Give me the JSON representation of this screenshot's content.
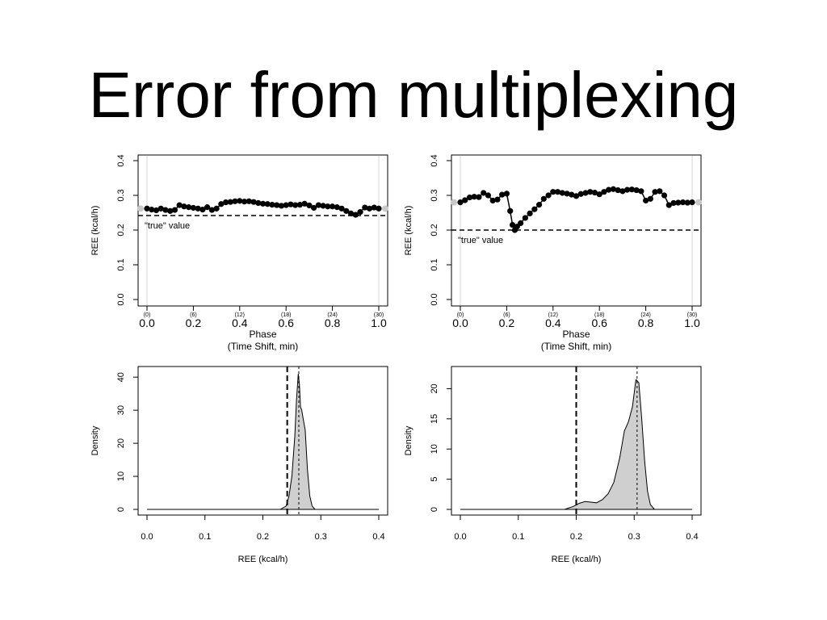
{
  "slide": {
    "title": "Error from multiplexing"
  },
  "chart_data": [
    {
      "id": "top-left",
      "type": "scatter",
      "xlabel": "Phase",
      "xlabel2": "(Time Shift, min)",
      "ylabel": "REE (kcal/h)",
      "xlim": [
        0,
        1
      ],
      "ylim": [
        0,
        0.4
      ],
      "xticks": [
        "0.0",
        "0.2",
        "0.4",
        "0.6",
        "0.8",
        "1.0"
      ],
      "xticks_minutes": [
        "(0)",
        "(6)",
        "(12)",
        "(18)",
        "(24)",
        "(30)"
      ],
      "yticks": [
        "0.0",
        "0.1",
        "0.2",
        "0.3",
        "0.4"
      ],
      "true_value": 0.242,
      "true_value_label": "\"true\" value",
      "series": [
        {
          "x": [
            0.0,
            0.02,
            0.04,
            0.06,
            0.08,
            0.1,
            0.12,
            0.14,
            0.16,
            0.18,
            0.2,
            0.22,
            0.24,
            0.26,
            0.28,
            0.3,
            0.32,
            0.34,
            0.36,
            0.38,
            0.4,
            0.42,
            0.44,
            0.46,
            0.48,
            0.5,
            0.52,
            0.54,
            0.56,
            0.58,
            0.6,
            0.62,
            0.64,
            0.66,
            0.68,
            0.7,
            0.72,
            0.74,
            0.76,
            0.78,
            0.8,
            0.82,
            0.84,
            0.86,
            0.88,
            0.9,
            0.92,
            0.94,
            0.96,
            0.98,
            1.0
          ],
          "y": [
            0.262,
            0.259,
            0.257,
            0.262,
            0.258,
            0.255,
            0.258,
            0.272,
            0.268,
            0.266,
            0.264,
            0.262,
            0.259,
            0.266,
            0.258,
            0.262,
            0.275,
            0.28,
            0.281,
            0.283,
            0.284,
            0.282,
            0.283,
            0.281,
            0.278,
            0.276,
            0.275,
            0.273,
            0.272,
            0.27,
            0.272,
            0.274,
            0.272,
            0.273,
            0.276,
            0.271,
            0.264,
            0.272,
            0.27,
            0.268,
            0.268,
            0.266,
            0.262,
            0.255,
            0.248,
            0.244,
            0.252,
            0.265,
            0.262,
            0.265,
            0.262
          ]
        }
      ]
    },
    {
      "id": "top-right",
      "type": "scatter",
      "xlabel": "Phase",
      "xlabel2": "(Time Shift, min)",
      "ylabel": "REE (kcal/h)",
      "xlim": [
        0,
        1
      ],
      "ylim": [
        0,
        0.4
      ],
      "xticks": [
        "0.0",
        "0.2",
        "0.4",
        "0.6",
        "0.8",
        "1.0"
      ],
      "xticks_minutes": [
        "(0)",
        "(6)",
        "(12)",
        "(18)",
        "(24)",
        "(30)"
      ],
      "yticks": [
        "0.0",
        "0.1",
        "0.2",
        "0.3",
        "0.4"
      ],
      "true_value": 0.2,
      "true_value_label": "\"true\" value",
      "series": [
        {
          "x": [
            0.0,
            0.02,
            0.04,
            0.06,
            0.08,
            0.1,
            0.12,
            0.14,
            0.16,
            0.18,
            0.2,
            0.215,
            0.225,
            0.235,
            0.245,
            0.26,
            0.28,
            0.3,
            0.32,
            0.34,
            0.36,
            0.38,
            0.4,
            0.42,
            0.44,
            0.46,
            0.48,
            0.5,
            0.52,
            0.54,
            0.56,
            0.58,
            0.6,
            0.62,
            0.64,
            0.66,
            0.68,
            0.7,
            0.72,
            0.74,
            0.76,
            0.78,
            0.8,
            0.82,
            0.84,
            0.86,
            0.88,
            0.9,
            0.92,
            0.94,
            0.96,
            0.98,
            1.0
          ],
          "y": [
            0.28,
            0.286,
            0.294,
            0.296,
            0.295,
            0.307,
            0.3,
            0.285,
            0.288,
            0.302,
            0.305,
            0.255,
            0.215,
            0.2,
            0.21,
            0.22,
            0.235,
            0.248,
            0.26,
            0.273,
            0.29,
            0.3,
            0.31,
            0.31,
            0.307,
            0.305,
            0.302,
            0.298,
            0.304,
            0.307,
            0.31,
            0.308,
            0.303,
            0.31,
            0.316,
            0.318,
            0.315,
            0.312,
            0.316,
            0.317,
            0.315,
            0.312,
            0.285,
            0.29,
            0.31,
            0.312,
            0.3,
            0.272,
            0.278,
            0.279,
            0.28,
            0.279,
            0.28
          ]
        }
      ]
    },
    {
      "id": "bottom-left",
      "type": "area",
      "xlabel": "REE (kcal/h)",
      "ylabel": "Density",
      "xlim": [
        0,
        0.4
      ],
      "ylim": [
        0,
        42
      ],
      "xticks": [
        "0.0",
        "0.1",
        "0.2",
        "0.3",
        "0.4"
      ],
      "yticks": [
        "0",
        "10",
        "20",
        "30",
        "40"
      ],
      "true_value": 0.242,
      "mean": 0.262,
      "series": [
        {
          "x": [
            0.23,
            0.24,
            0.245,
            0.25,
            0.255,
            0.258,
            0.261,
            0.263,
            0.265,
            0.267,
            0.27,
            0.273,
            0.277,
            0.281,
            0.285,
            0.29
          ],
          "y": [
            0,
            1,
            4,
            10,
            22,
            33,
            41,
            38,
            31,
            30,
            27,
            24,
            12,
            4,
            1,
            0
          ]
        }
      ]
    },
    {
      "id": "bottom-right",
      "type": "area",
      "xlabel": "REE (kcal/h)",
      "ylabel": "Density",
      "xlim": [
        0,
        0.4
      ],
      "ylim": [
        0,
        23
      ],
      "xticks": [
        "0.0",
        "0.1",
        "0.2",
        "0.3",
        "0.4"
      ],
      "yticks": [
        "0",
        "5",
        "10",
        "15",
        "20"
      ],
      "true_value": 0.2,
      "mean": 0.305,
      "series": [
        {
          "x": [
            0.18,
            0.195,
            0.205,
            0.215,
            0.225,
            0.235,
            0.245,
            0.255,
            0.265,
            0.275,
            0.283,
            0.29,
            0.297,
            0.303,
            0.308,
            0.313,
            0.318,
            0.323,
            0.328,
            0.335
          ],
          "y": [
            0,
            0.5,
            1.0,
            1.3,
            1.2,
            1.1,
            1.6,
            2.6,
            4.5,
            8.5,
            13,
            14.5,
            17,
            21.5,
            21,
            15,
            8,
            3,
            0.8,
            0
          ]
        }
      ]
    }
  ]
}
